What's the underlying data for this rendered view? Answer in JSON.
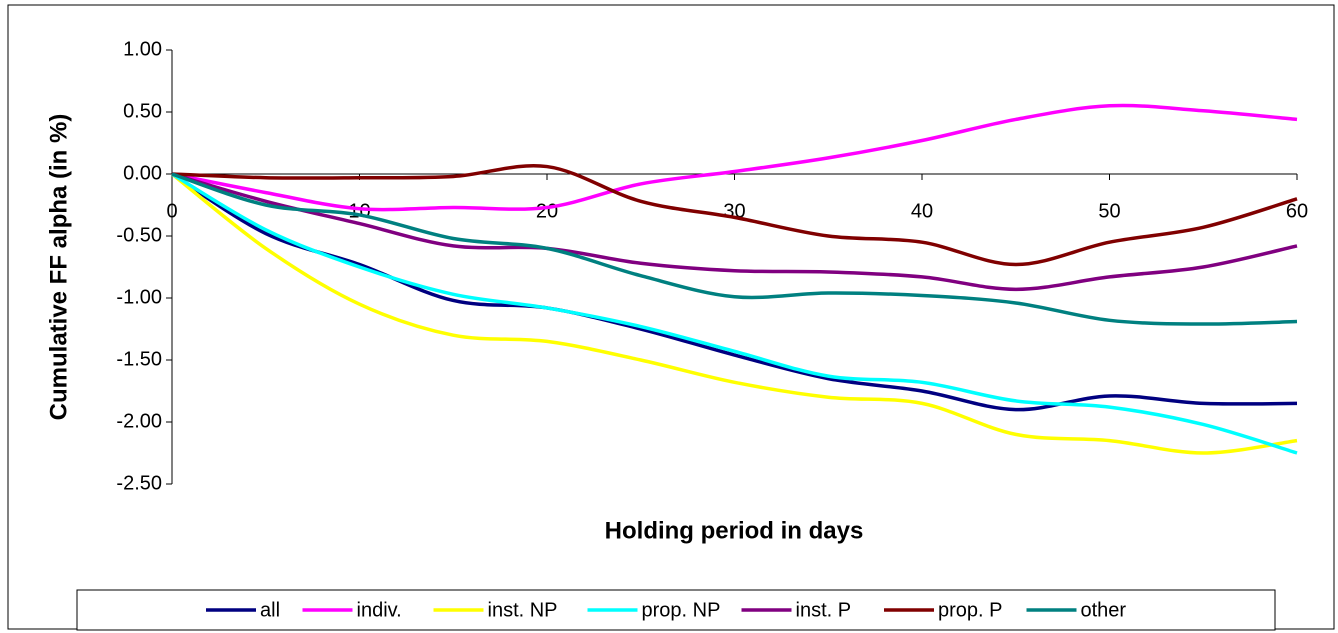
{
  "chart_data": {
    "type": "line",
    "x_label": "Holding period in days",
    "y_label": "Cumulative FF alpha (in %)",
    "x": [
      0,
      5,
      10,
      15,
      20,
      25,
      30,
      35,
      40,
      45,
      50,
      55,
      60
    ],
    "xlim": [
      0,
      60
    ],
    "xticks": [
      0,
      10,
      20,
      30,
      40,
      50,
      60
    ],
    "ylim": [
      -2.5,
      1
    ],
    "yticks": [
      {
        "value": 1,
        "label": "1.00"
      },
      {
        "value": 0.5,
        "label": "0.50"
      },
      {
        "value": 0,
        "label": "0.00"
      },
      {
        "value": -0.5,
        "label": "-0.50"
      },
      {
        "value": -1,
        "label": "-1.00"
      },
      {
        "value": -1.5,
        "label": "-1.50"
      },
      {
        "value": -2,
        "label": "-2.00"
      },
      {
        "value": -2.5,
        "label": "-2.50"
      }
    ],
    "legend": "bottom",
    "series": [
      {
        "name": "all",
        "color": "#000080",
        "values": [
          0,
          -0.48,
          -0.73,
          -1.02,
          -1.08,
          -1.25,
          -1.46,
          -1.65,
          -1.75,
          -1.9,
          -1.79,
          -1.85,
          -1.85
        ]
      },
      {
        "name": "indiv.",
        "color": "#ff00ff",
        "values": [
          0,
          -0.15,
          -0.28,
          -0.27,
          -0.27,
          -0.08,
          0.02,
          0.13,
          0.27,
          0.44,
          0.55,
          0.51,
          0.44
        ]
      },
      {
        "name": "inst. NP",
        "color": "#ffff00",
        "values": [
          0,
          -0.6,
          -1.05,
          -1.3,
          -1.35,
          -1.5,
          -1.68,
          -1.8,
          -1.85,
          -2.1,
          -2.15,
          -2.25,
          -2.15
        ]
      },
      {
        "name": "prop. NP",
        "color": "#00ffff",
        "values": [
          0,
          -0.45,
          -0.75,
          -0.97,
          -1.08,
          -1.23,
          -1.43,
          -1.63,
          -1.68,
          -1.83,
          -1.88,
          -2.02,
          -2.25
        ]
      },
      {
        "name": "inst. P",
        "color": "#800080",
        "values": [
          0,
          -0.22,
          -0.4,
          -0.58,
          -0.6,
          -0.72,
          -0.78,
          -0.79,
          -0.83,
          -0.93,
          -0.83,
          -0.75,
          -0.58
        ]
      },
      {
        "name": "prop. P",
        "color": "#800000",
        "values": [
          0,
          -0.03,
          -0.03,
          -0.02,
          0.06,
          -0.22,
          -0.35,
          -0.5,
          -0.55,
          -0.73,
          -0.55,
          -0.43,
          -0.2
        ]
      },
      {
        "name": "other",
        "color": "#008080",
        "values": [
          0,
          -0.25,
          -0.33,
          -0.52,
          -0.6,
          -0.82,
          -0.99,
          -0.96,
          -0.98,
          -1.04,
          -1.18,
          -1.21,
          -1.19
        ]
      }
    ]
  }
}
